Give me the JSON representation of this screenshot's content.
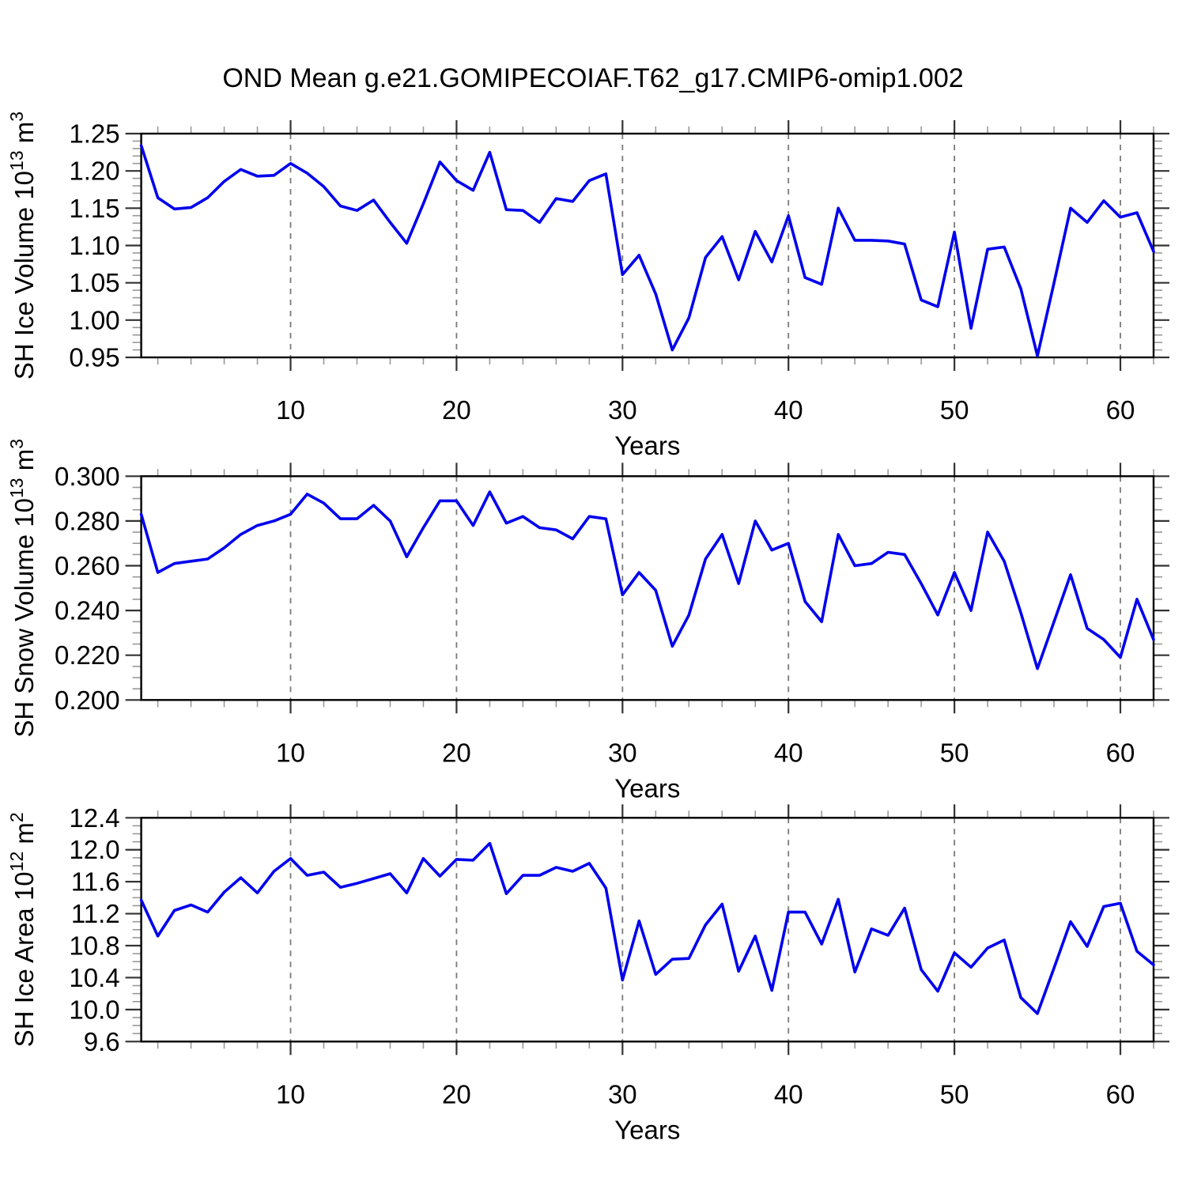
{
  "title": "OND Mean g.e21.GOMIPECOIAF.T62_g17.CMIP6-omip1.002",
  "colors": {
    "line": "#0000EE",
    "grid": "#7a7a7a",
    "frame": "#000000",
    "tick_major": "#333333",
    "tick_minor": "#999999",
    "text": "#000000",
    "background": "#FFFFFF"
  },
  "chart_data": [
    {
      "type": "line",
      "title": "",
      "ylabel": "SH Ice Volume 10^13 m^3",
      "ylabel_parts": [
        {
          "t": "SH Ice Volume 10"
        },
        {
          "t": "13",
          "sup": true
        },
        {
          "t": " m"
        },
        {
          "t": "3",
          "sup": true
        }
      ],
      "xlabel": "Years",
      "xlim": [
        1,
        62
      ],
      "xtick_labels": [
        {
          "value": 10,
          "label": "10"
        },
        {
          "value": 20,
          "label": "20"
        },
        {
          "value": 30,
          "label": "30"
        },
        {
          "value": 40,
          "label": "40"
        },
        {
          "value": 50,
          "label": "50"
        },
        {
          "value": 60,
          "label": "60"
        }
      ],
      "xtick_minor_step": 2,
      "ylim": [
        0.95,
        1.25
      ],
      "yticks": [
        {
          "value": 1.25,
          "label": "1.25"
        },
        {
          "value": 1.2,
          "label": "1.20"
        },
        {
          "value": 1.15,
          "label": "1.15"
        },
        {
          "value": 1.1,
          "label": "1.10"
        },
        {
          "value": 1.05,
          "label": "1.05"
        },
        {
          "value": 1.0,
          "label": "1.00"
        },
        {
          "value": 0.95,
          "label": "0.95"
        }
      ],
      "ytick_minor_step": 0.01,
      "grid": "vertical dashed lines at major x ticks",
      "legend": "none",
      "x_years": "1 to 62, one point per year",
      "values": [
        1.234,
        1.164,
        1.149,
        1.151,
        1.164,
        1.186,
        1.202,
        1.193,
        1.194,
        1.21,
        1.197,
        1.179,
        1.153,
        1.147,
        1.161,
        1.131,
        1.103,
        1.156,
        1.212,
        1.187,
        1.174,
        1.225,
        1.148,
        1.147,
        1.131,
        1.163,
        1.159,
        1.187,
        1.196,
        1.061,
        1.087,
        1.035,
        0.96,
        1.003,
        1.084,
        1.112,
        1.054,
        1.119,
        1.078,
        1.14,
        1.057,
        1.048,
        1.15,
        1.107,
        1.107,
        1.106,
        1.102,
        1.027,
        1.018,
        1.118,
        0.989,
        1.095,
        1.098,
        1.042,
        0.952,
        1.05,
        1.15,
        1.131,
        1.16,
        1.138,
        1.144,
        1.092
      ]
    },
    {
      "type": "line",
      "title": "",
      "ylabel": "SH Snow Volume 10^13 m^3",
      "ylabel_parts": [
        {
          "t": "SH Snow Volume 10"
        },
        {
          "t": "13",
          "sup": true
        },
        {
          "t": " m"
        },
        {
          "t": "3",
          "sup": true
        }
      ],
      "xlabel": "Years",
      "xlim": [
        1,
        62
      ],
      "xtick_labels": [
        {
          "value": 10,
          "label": "10"
        },
        {
          "value": 20,
          "label": "20"
        },
        {
          "value": 30,
          "label": "30"
        },
        {
          "value": 40,
          "label": "40"
        },
        {
          "value": 50,
          "label": "50"
        },
        {
          "value": 60,
          "label": "60"
        }
      ],
      "xtick_minor_step": 2,
      "ylim": [
        0.2,
        0.3
      ],
      "yticks": [
        {
          "value": 0.3,
          "label": "0.300"
        },
        {
          "value": 0.28,
          "label": "0.280"
        },
        {
          "value": 0.26,
          "label": "0.260"
        },
        {
          "value": 0.24,
          "label": "0.240"
        },
        {
          "value": 0.22,
          "label": "0.220"
        },
        {
          "value": 0.2,
          "label": "0.200"
        }
      ],
      "ytick_minor_step": 0.005,
      "grid": "vertical dashed lines at major x ticks",
      "legend": "none",
      "x_years": "1 to 62, one point per year",
      "values": [
        0.283,
        0.257,
        0.261,
        0.262,
        0.263,
        0.268,
        0.274,
        0.278,
        0.28,
        0.283,
        0.292,
        0.288,
        0.281,
        0.281,
        0.287,
        0.28,
        0.264,
        0.277,
        0.289,
        0.289,
        0.278,
        0.293,
        0.279,
        0.282,
        0.277,
        0.276,
        0.272,
        0.282,
        0.281,
        0.247,
        0.257,
        0.249,
        0.224,
        0.238,
        0.263,
        0.274,
        0.252,
        0.28,
        0.267,
        0.27,
        0.244,
        0.235,
        0.274,
        0.26,
        0.261,
        0.266,
        0.265,
        0.252,
        0.238,
        0.257,
        0.24,
        0.275,
        0.262,
        0.239,
        0.214,
        0.235,
        0.256,
        0.232,
        0.227,
        0.219,
        0.245,
        0.227
      ]
    },
    {
      "type": "line",
      "title": "",
      "ylabel": "SH Ice Area 10^12 m^2",
      "ylabel_parts": [
        {
          "t": "SH Ice Area 10"
        },
        {
          "t": "12",
          "sup": true
        },
        {
          "t": " m"
        },
        {
          "t": "2",
          "sup": true
        }
      ],
      "xlabel": "Years",
      "xlim": [
        1,
        62
      ],
      "xtick_labels": [
        {
          "value": 10,
          "label": "10"
        },
        {
          "value": 20,
          "label": "20"
        },
        {
          "value": 30,
          "label": "30"
        },
        {
          "value": 40,
          "label": "40"
        },
        {
          "value": 50,
          "label": "50"
        },
        {
          "value": 60,
          "label": "60"
        }
      ],
      "xtick_minor_step": 2,
      "ylim": [
        9.6,
        12.4
      ],
      "yticks": [
        {
          "value": 12.4,
          "label": "12.4"
        },
        {
          "value": 12.0,
          "label": "12.0"
        },
        {
          "value": 11.6,
          "label": "11.6"
        },
        {
          "value": 11.2,
          "label": "11.2"
        },
        {
          "value": 10.8,
          "label": "10.8"
        },
        {
          "value": 10.4,
          "label": "10.4"
        },
        {
          "value": 10.0,
          "label": "10.0"
        },
        {
          "value": 9.6,
          "label": "9.6"
        }
      ],
      "ytick_minor_step": 0.1,
      "grid": "vertical dashed lines at major x ticks",
      "legend": "none",
      "x_years": "1 to 62, one point per year",
      "values": [
        11.37,
        10.92,
        11.24,
        11.31,
        11.22,
        11.47,
        11.65,
        11.46,
        11.73,
        11.89,
        11.68,
        11.72,
        11.53,
        11.58,
        11.64,
        11.7,
        11.46,
        11.89,
        11.67,
        11.88,
        11.87,
        12.08,
        11.45,
        11.68,
        11.68,
        11.78,
        11.73,
        11.83,
        11.52,
        10.37,
        11.11,
        10.44,
        10.63,
        10.64,
        11.06,
        11.32,
        10.48,
        10.92,
        10.24,
        11.22,
        11.22,
        10.82,
        11.38,
        10.47,
        11.01,
        10.93,
        11.27,
        10.5,
        10.23,
        10.71,
        10.53,
        10.77,
        10.87,
        10.15,
        9.95,
        10.52,
        11.1,
        10.79,
        11.29,
        11.33,
        10.73,
        10.56
      ]
    }
  ]
}
